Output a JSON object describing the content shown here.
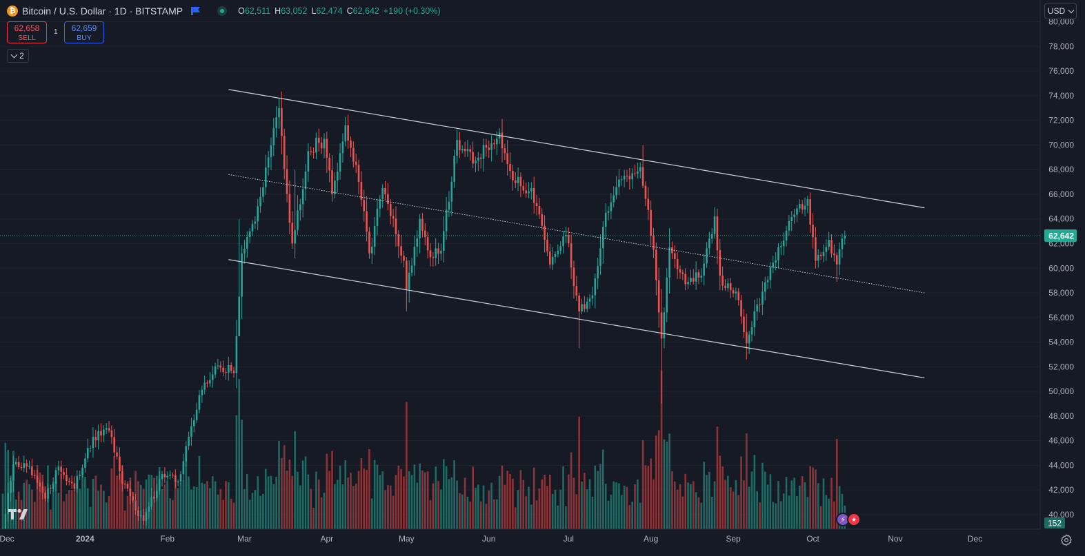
{
  "header": {
    "title": "Bitcoin / U.S. Dollar · 1D · BITSTAMP",
    "ohlc": [
      {
        "key": "O",
        "value": "62,511"
      },
      {
        "key": "H",
        "value": "63,052"
      },
      {
        "key": "L",
        "value": "62,474"
      },
      {
        "key": "C",
        "value": "62,642"
      }
    ],
    "change": "+190 (+0.30%)"
  },
  "trade": {
    "sell_price": "62,658",
    "sell_label": "SELL",
    "spread": "1",
    "buy_price": "62,659",
    "buy_label": "BUY"
  },
  "indicators_toggle": {
    "count": "2"
  },
  "currency": "USD",
  "colors": {
    "background": "#161a25",
    "up": "#26a69a",
    "down": "#ef5350",
    "volume_up": "#1d6b64",
    "volume_down": "#8a3438",
    "text": "#d1d4dc",
    "grid": "#1f2330",
    "last_price": "#22ab94"
  },
  "icons": [
    "bitcoin-logo-icon",
    "flag-icon",
    "live-status-icon",
    "chevron-down-icon",
    "tradingview-logo-icon",
    "lightning-event-icon",
    "us-flag-event-icon",
    "settings-icon"
  ],
  "chart_data": {
    "type": "candlestick",
    "symbol": "BTCUSD",
    "timeframe": "1D",
    "x_axis_labels": [
      "Dec",
      "2024",
      "Feb",
      "Mar",
      "Apr",
      "May",
      "Jun",
      "Jul",
      "Aug",
      "Sep",
      "Oct",
      "Nov",
      "Dec"
    ],
    "y_axis_labels": [
      "40,000",
      "42,000",
      "44,000",
      "46,000",
      "48,000",
      "50,000",
      "52,000",
      "54,000",
      "56,000",
      "58,000",
      "60,000",
      "62,000",
      "64,000",
      "66,000",
      "68,000",
      "70,000",
      "72,000",
      "74,000",
      "76,000",
      "78,000",
      "80,000"
    ],
    "ylim": [
      39500,
      80800
    ],
    "last_price": "62,642",
    "last_price_value": 62642,
    "volume_badge": "152",
    "start_date": "2023-12-01",
    "anchors": [
      {
        "date": "2023-12-01",
        "close": 38700
      },
      {
        "date": "2023-12-05",
        "close": 44100
      },
      {
        "date": "2023-12-10",
        "close": 43900
      },
      {
        "date": "2023-12-17",
        "close": 41300
      },
      {
        "date": "2023-12-22",
        "close": 43900
      },
      {
        "date": "2023-12-28",
        "close": 42100
      },
      {
        "date": "2024-01-02",
        "close": 45400
      },
      {
        "date": "2024-01-08",
        "close": 46900
      },
      {
        "date": "2024-01-11",
        "close": 46300
      },
      {
        "date": "2024-01-15",
        "close": 42500
      },
      {
        "date": "2024-01-23",
        "close": 39500
      },
      {
        "date": "2024-01-30",
        "close": 43300
      },
      {
        "date": "2024-02-05",
        "close": 42700
      },
      {
        "date": "2024-02-13",
        "close": 49700
      },
      {
        "date": "2024-02-20",
        "close": 52100
      },
      {
        "date": "2024-02-26",
        "close": 51500
      },
      {
        "date": "2024-02-29",
        "close": 61200
      },
      {
        "date": "2024-03-05",
        "close": 63800
      },
      {
        "date": "2024-03-10",
        "close": 69000
      },
      {
        "date": "2024-03-14",
        "close": 73000
      },
      {
        "date": "2024-03-19",
        "close": 62000
      },
      {
        "date": "2024-03-25",
        "close": 69500
      },
      {
        "date": "2024-03-31",
        "close": 70500
      },
      {
        "date": "2024-04-03",
        "close": 66000
      },
      {
        "date": "2024-04-08",
        "close": 71600
      },
      {
        "date": "2024-04-13",
        "close": 67000
      },
      {
        "date": "2024-04-17",
        "close": 61200
      },
      {
        "date": "2024-04-22",
        "close": 66500
      },
      {
        "date": "2024-04-30",
        "close": 60600
      },
      {
        "date": "2024-05-01",
        "close": 58300
      },
      {
        "date": "2024-05-06",
        "close": 64000
      },
      {
        "date": "2024-05-10",
        "close": 60900
      },
      {
        "date": "2024-05-14",
        "close": 61400
      },
      {
        "date": "2024-05-20",
        "close": 70400
      },
      {
        "date": "2024-05-26",
        "close": 68500
      },
      {
        "date": "2024-06-05",
        "close": 71000
      },
      {
        "date": "2024-06-11",
        "close": 66900
      },
      {
        "date": "2024-06-17",
        "close": 66500
      },
      {
        "date": "2024-06-24",
        "close": 60300
      },
      {
        "date": "2024-06-30",
        "close": 62700
      },
      {
        "date": "2024-07-05",
        "close": 56500
      },
      {
        "date": "2024-07-10",
        "close": 57800
      },
      {
        "date": "2024-07-15",
        "close": 64500
      },
      {
        "date": "2024-07-22",
        "close": 67500
      },
      {
        "date": "2024-07-28",
        "close": 68200
      },
      {
        "date": "2024-08-02",
        "close": 61500
      },
      {
        "date": "2024-08-05",
        "close": 54300
      },
      {
        "date": "2024-08-08",
        "close": 61700
      },
      {
        "date": "2024-08-14",
        "close": 58700
      },
      {
        "date": "2024-08-20",
        "close": 59400
      },
      {
        "date": "2024-08-25",
        "close": 64200
      },
      {
        "date": "2024-08-27",
        "close": 59400
      },
      {
        "date": "2024-09-03",
        "close": 57400
      },
      {
        "date": "2024-09-06",
        "close": 53900
      },
      {
        "date": "2024-09-12",
        "close": 58100
      },
      {
        "date": "2024-09-18",
        "close": 61700
      },
      {
        "date": "2024-09-26",
        "close": 65200
      },
      {
        "date": "2024-09-29",
        "close": 65600
      },
      {
        "date": "2024-10-02",
        "close": 60600
      },
      {
        "date": "2024-10-07",
        "close": 62300
      },
      {
        "date": "2024-10-10",
        "close": 60300
      },
      {
        "date": "2024-10-13",
        "close": 62642
      }
    ],
    "wicks": [
      {
        "date": "2024-02-28",
        "low": 56700,
        "high": 64000
      },
      {
        "date": "2024-03-14",
        "low": 71300,
        "high": 73800
      },
      {
        "date": "2024-03-20",
        "low": 60800,
        "high": 68000
      },
      {
        "date": "2024-05-01",
        "low": 56500,
        "high": 60900
      },
      {
        "date": "2024-07-05",
        "low": 53500,
        "high": 58000
      },
      {
        "date": "2024-07-29",
        "low": 66500,
        "high": 70000
      },
      {
        "date": "2024-08-05",
        "low": 49000,
        "high": 58300
      },
      {
        "date": "2024-09-06",
        "low": 52600,
        "high": 56300
      },
      {
        "date": "2024-10-10",
        "low": 58900,
        "high": 61300
      }
    ],
    "trendlines": [
      {
        "name": "channel-upper",
        "from": {
          "date": "2024-02-24",
          "value": 74500
        },
        "to": {
          "date": "2024-11-12",
          "value": 64900
        },
        "style": "solid"
      },
      {
        "name": "channel-middle",
        "from": {
          "date": "2024-02-24",
          "value": 67600
        },
        "to": {
          "date": "2024-11-12",
          "value": 58000
        },
        "style": "dotted"
      },
      {
        "name": "channel-lower",
        "from": {
          "date": "2024-02-24",
          "value": 60700
        },
        "to": {
          "date": "2024-11-12",
          "value": 51100
        },
        "style": "solid"
      }
    ]
  }
}
